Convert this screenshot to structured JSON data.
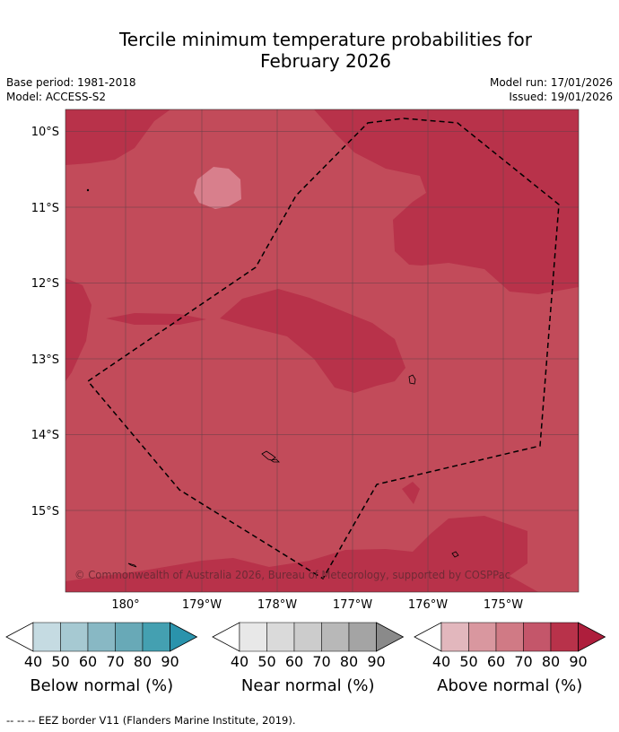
{
  "title_line1": "Tercile minimum temperature probabilities for",
  "title_line2": "February 2026",
  "base_period": "Base period: 1981-2018",
  "model": "Model: ACCESS-S2",
  "model_run": "Model run: 17/01/2026",
  "issued": "Issued: 19/01/2026",
  "copyright": "© Commonwealth of Australia 2026, Bureau of Meteorology, supported by COSPPac",
  "footnote": "--  --  -- EEZ border V11 (Flanders Marine Institute, 2019).",
  "lat_labels": [
    "10°S",
    "11°S",
    "12°S",
    "13°S",
    "14°S",
    "15°S"
  ],
  "lon_labels": [
    "180°",
    "179°W",
    "178°W",
    "177°W",
    "176°W",
    "175°W"
  ],
  "colors": {
    "above_70_80": "#c24b5a",
    "above_80_90": "#b8324a",
    "above_60_70": "#d87f8c",
    "border": "#000000"
  },
  "colorbars": [
    {
      "title": "Below normal (%)",
      "ticks": [
        "40",
        "50",
        "60",
        "70",
        "80",
        "90"
      ],
      "colors": [
        "#c5dbe2",
        "#a6c9d2",
        "#88b8c4",
        "#68a9b7",
        "#44a0b1",
        "#2a93ac"
      ]
    },
    {
      "title": "Near normal (%)",
      "ticks": [
        "40",
        "50",
        "60",
        "70",
        "80",
        "90"
      ],
      "colors": [
        "#e8e8e8",
        "#dadada",
        "#cccccc",
        "#b8b8b8",
        "#a4a4a4",
        "#8a8a8a"
      ]
    },
    {
      "title": "Above normal (%)",
      "ticks": [
        "40",
        "50",
        "60",
        "70",
        "80",
        "90"
      ],
      "colors": [
        "#e2b7bd",
        "#d9979f",
        "#d07a85",
        "#c4566a",
        "#b8324a",
        "#ae1e3c"
      ]
    }
  ]
}
